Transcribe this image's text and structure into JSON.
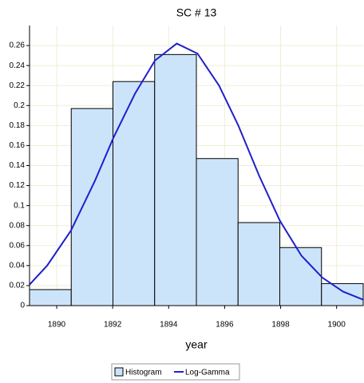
{
  "chart_data": {
    "type": "histogram",
    "title": "SC # 13",
    "x_label": "year",
    "bins": [
      1889.03,
      1890.52,
      1892.01,
      1893.5,
      1894.99,
      1896.48,
      1897.97,
      1899.46,
      1900.95
    ],
    "series": [
      {
        "name": "Histogram",
        "color": "#cce4fa",
        "values": [
          0.016,
          0.197,
          0.224,
          0.251,
          0.147,
          0.083,
          0.058,
          0.022
        ]
      },
      {
        "name": "Log-Gamma",
        "color": "#1f1fcc",
        "x": [
          1889.03,
          1889.66,
          1890.51,
          1891.37,
          1892.03,
          1892.8,
          1893.51,
          1894.29,
          1895.03,
          1895.8,
          1896.49,
          1897.23,
          1897.97,
          1898.74,
          1899.49,
          1900.23,
          1900.94
        ],
        "values": [
          0.021,
          0.04,
          0.075,
          0.125,
          0.168,
          0.212,
          0.245,
          0.262,
          0.252,
          0.22,
          0.18,
          0.13,
          0.085,
          0.05,
          0.028,
          0.014,
          0.006
        ]
      }
    ],
    "xlim": [
      1889.03,
      1900.95
    ],
    "xticks": [
      1890,
      1892,
      1894,
      1896,
      1898,
      1900
    ],
    "ylim": [
      0,
      0.28
    ],
    "yticks": [
      0,
      0.02,
      0.04,
      0.06,
      0.08,
      0.1,
      0.12,
      0.14,
      0.16,
      0.18,
      0.2,
      0.22,
      0.24,
      0.26
    ],
    "grid": true
  }
}
